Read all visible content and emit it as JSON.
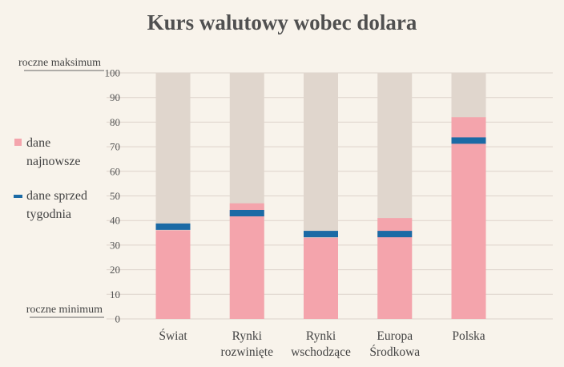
{
  "chart_data": {
    "type": "bar",
    "title": "Kurs walutowy wobec dolara",
    "categories": [
      [
        "Świat"
      ],
      [
        "Rynki",
        "rozwinięte"
      ],
      [
        "Rynki",
        "wschodzące"
      ],
      [
        "Europa",
        "Środkowa"
      ],
      [
        "Polska"
      ]
    ],
    "series": [
      {
        "name": "dane najnowsze",
        "type": "bar",
        "values": [
          36,
          47,
          33,
          41,
          82
        ],
        "color": "#f4a4ac"
      },
      {
        "name": "dane sprzed tygodnia",
        "type": "marker",
        "values": [
          37.5,
          43,
          34.5,
          34.5,
          72.5
        ],
        "color": "#1b6aa5"
      }
    ],
    "background_range": [
      0,
      100
    ],
    "background_color": "#e0d6cd",
    "ylim": [
      0,
      100
    ],
    "yticks": [
      0,
      10,
      20,
      30,
      40,
      50,
      60,
      70,
      80,
      90,
      100
    ],
    "y_top_label": "roczne maksimum",
    "y_bottom_label": "roczne minimum",
    "legend": [
      {
        "lines": [
          "dane",
          "najnowsze"
        ],
        "symbol": "square",
        "color": "#f4a4ac"
      },
      {
        "lines": [
          "dane sprzed",
          "tygodnia"
        ],
        "symbol": "dash",
        "color": "#1b6aa5"
      }
    ],
    "grid": true,
    "legend_position": "left"
  }
}
